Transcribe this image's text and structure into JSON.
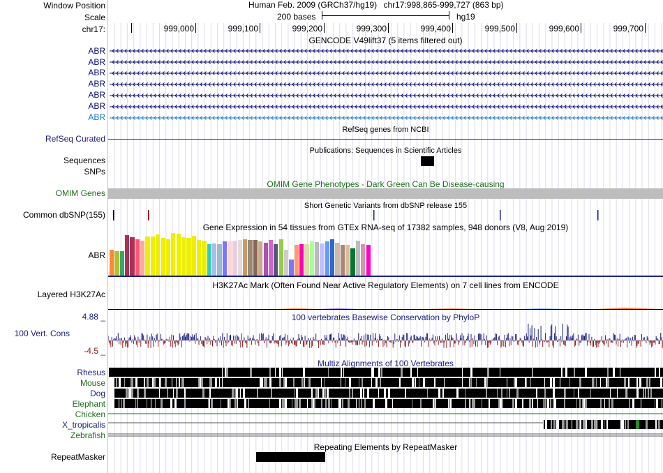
{
  "header": {
    "window_position_label": "Window Position",
    "assembly": "Human Feb. 2009 (GRCh37/hg19)",
    "position": "chr17:998,865-999,727 (863 bp)",
    "scale_label": "Scale",
    "scale_value": "200 bases",
    "scale_db": "hg19",
    "chrom_label": "chr17:",
    "ruler_ticks": [
      "999,000",
      "999,100",
      "999,200",
      "999,300",
      "999,400",
      "999,500",
      "999,600",
      "999,700"
    ]
  },
  "gencode": {
    "title": "GENCODE V49lift37 (5 items filtered out)",
    "items": [
      "ABR",
      "ABR",
      "ABR",
      "ABR",
      "ABR",
      "ABR",
      "ABR"
    ],
    "colors": [
      "#0c0c78",
      "#0c0c78",
      "#0c0c78",
      "#0c0c78",
      "#0c0c78",
      "#0c0c78",
      "#1a78c8"
    ]
  },
  "refseq": {
    "title": "RefSeq genes from NCBI",
    "label": "RefSeq Curated"
  },
  "publications": {
    "title": "Publications: Sequences in Scientific Articles",
    "label_sequences": "Sequences",
    "label_snps": "SNPs"
  },
  "omim": {
    "title": "OMIM Gene Phenotypes - Dark Green Can Be Disease-causing",
    "label": "OMIM Genes"
  },
  "dbsnp": {
    "title": "Short Genetic Variants from dbSNP release 155",
    "label": "Common dbSNP(155)"
  },
  "gtex": {
    "title": "Gene Expression in 54 tissues from GTEx RNA-seq of 17382 samples, 948 donors (V8, Aug 2019)",
    "label": "ABR",
    "colors": [
      "#ff8833",
      "#bbbb33",
      "#33aa66",
      "#aa3355",
      "#aa3355",
      "#ff5577",
      "#ffaa99",
      "#eeee00",
      "#eeee00",
      "#eeee00",
      "#eeee00",
      "#eeee00",
      "#eeee00",
      "#eeee00",
      "#eeee00",
      "#eeee00",
      "#eeee00",
      "#eeee00",
      "#eeee00",
      "#33ccbb",
      "#aabbee",
      "#99bbcc",
      "#7777ff",
      "#ffd5cc",
      "#eeccdd",
      "#dddddd",
      "#cc9966",
      "#998877",
      "#886655",
      "#ccaa88",
      "#aa55aa",
      "#cc66cc",
      "#555577",
      "#99cc44",
      "#cccccc",
      "#7777ff",
      "#ff9966",
      "#ff00bb",
      "#ddddaa",
      "#aaff99",
      "#bbbbbb",
      "#c0c0ff",
      "#6699ff",
      "#3366cc",
      "#ccbbaa",
      "#aa8877",
      "#ddbb99",
      "#007733",
      "#bbbbbb",
      "#cc99aa",
      "#ff00cc"
    ],
    "values": [
      0.62,
      0.58,
      0.58,
      0.95,
      0.9,
      0.85,
      0.82,
      0.92,
      0.92,
      0.96,
      0.88,
      0.85,
      1.0,
      0.98,
      0.9,
      0.88,
      0.94,
      0.84,
      0.82,
      0.75,
      0.76,
      0.74,
      0.8,
      0.8,
      0.82,
      0.84,
      0.86,
      0.84,
      0.84,
      0.8,
      0.78,
      0.84,
      0.75,
      0.86,
      0.62,
      0.38,
      0.72,
      0.74,
      0.74,
      0.8,
      0.79,
      0.76,
      0.8,
      0.86,
      0.78,
      0.73,
      0.72,
      0.65,
      0.82,
      0.74,
      0.72
    ]
  },
  "h3k27ac": {
    "title": "H3K27Ac Mark (Often Found Near Active Regulatory Elements) on 7 cell lines from ENCODE",
    "label": "Layered H3K27Ac"
  },
  "phylop": {
    "title": "100 vertebrates Basewise Conservation by PhyloP",
    "label": "100 Vert. Cons",
    "ymax": "4.88 _",
    "ymin": "-4.5 _"
  },
  "multiz": {
    "title": "Multiz Alignments of 100 Vertebrates",
    "species": [
      {
        "name": "Rhesus",
        "color": "#1a2080"
      },
      {
        "name": "Mouse",
        "color": "#1f6e1f"
      },
      {
        "name": "Dog",
        "color": "#1a2080"
      },
      {
        "name": "Elephant",
        "color": "#1f6e1f"
      },
      {
        "name": "Chicken",
        "color": "#1f6e1f"
      },
      {
        "name": "X_tropicalis",
        "color": "#1a2080"
      },
      {
        "name": "Zebrafish",
        "color": "#1f6e1f"
      }
    ]
  },
  "repeatmasker": {
    "title": "Repeating Elements by RepeatMasker",
    "label": "RepeatMasker"
  }
}
